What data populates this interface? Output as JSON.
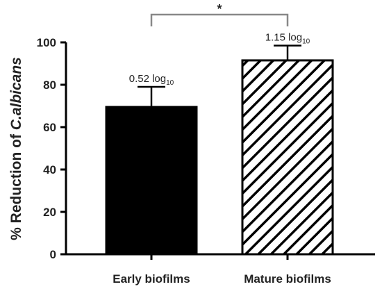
{
  "chart_data": {
    "type": "bar",
    "categories": [
      "Early biofilms",
      "Mature biofilms"
    ],
    "values": [
      69.5,
      91.5
    ],
    "errors": [
      9.5,
      7.0
    ],
    "fills": [
      "solid",
      "hatched"
    ],
    "bar_color": "#000000",
    "annotations": [
      {
        "main": "0.52 log",
        "sub": "10"
      },
      {
        "main": "1.15 log",
        "sub": "10"
      }
    ],
    "ylabel_prefix": "% Reduction of ",
    "ylabel_italic": "C.albicans",
    "ylim": [
      0,
      100
    ],
    "yticks": [
      "0",
      "20",
      "40",
      "60",
      "80",
      "100"
    ],
    "significance": {
      "between": [
        0,
        1
      ],
      "label": "*"
    },
    "grid": false,
    "legend": "none"
  }
}
